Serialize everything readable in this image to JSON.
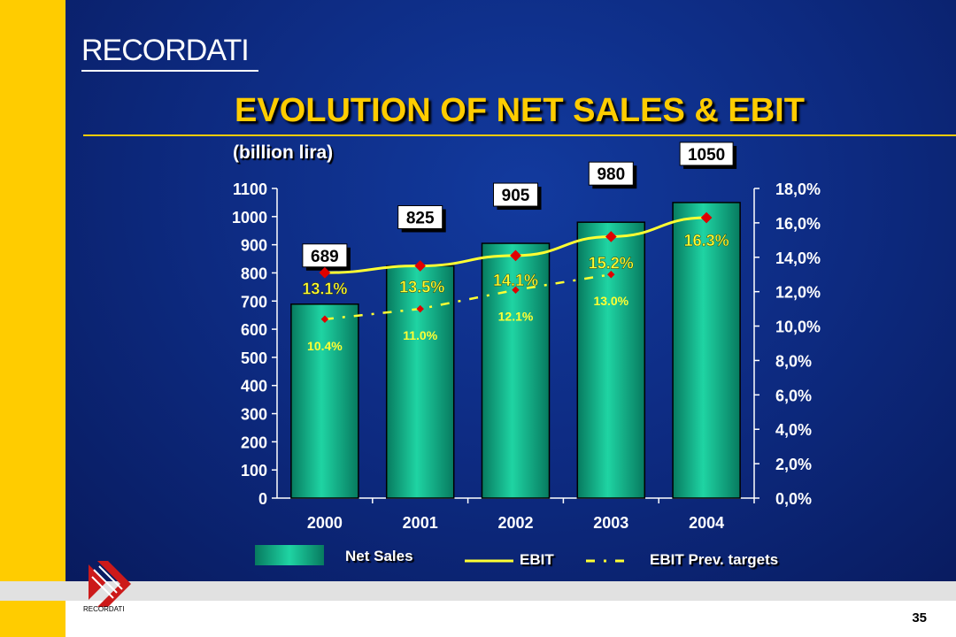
{
  "header": {
    "logo": "RECORDATI",
    "title": "EVOLUTION OF NET SALES & EBIT",
    "subtitle": "(billion lira)"
  },
  "footer": {
    "logo": "RECORDATI",
    "page_number": "35"
  },
  "colors": {
    "background": "#0d2a80",
    "accent": "#ffcc00",
    "bar": "#16b386",
    "ebit_line": "#ffff33",
    "marker": "#e00000"
  },
  "legend": {
    "net_sales": "Net Sales",
    "ebit": "EBIT",
    "ebit_targets": "EBIT Prev. targets"
  },
  "chart_data": {
    "type": "bar",
    "categories": [
      "2000",
      "2001",
      "2002",
      "2003",
      "2004"
    ],
    "series": [
      {
        "name": "Net Sales",
        "type": "bar",
        "axis": "left",
        "values": [
          689,
          825,
          905,
          980,
          1050
        ],
        "labels": [
          "689",
          "825",
          "905",
          "980",
          "1050"
        ]
      },
      {
        "name": "EBIT",
        "type": "line",
        "axis": "right",
        "values": [
          13.1,
          13.5,
          14.1,
          15.2,
          16.3
        ],
        "labels": [
          "13.1%",
          "13.5%",
          "14.1%",
          "15.2%",
          "16.3%"
        ]
      },
      {
        "name": "EBIT Prev. targets",
        "type": "line",
        "style": "dashed",
        "axis": "right",
        "values": [
          10.4,
          11.0,
          12.1,
          13.0,
          null
        ],
        "labels": [
          "10.4%",
          "11.0%",
          "12.1%",
          "13.0%",
          ""
        ]
      }
    ],
    "y_left": {
      "ylim": [
        0,
        1100
      ],
      "ticks": [
        "0",
        "100",
        "200",
        "300",
        "400",
        "500",
        "600",
        "700",
        "800",
        "900",
        "1000",
        "1100"
      ]
    },
    "y_right": {
      "ylim": [
        0,
        18
      ],
      "ticks": [
        "0,0%",
        "2,0%",
        "4,0%",
        "6,0%",
        "8,0%",
        "10,0%",
        "12,0%",
        "14,0%",
        "16,0%",
        "18,0%"
      ]
    },
    "grid": false,
    "legend_position": "bottom"
  }
}
